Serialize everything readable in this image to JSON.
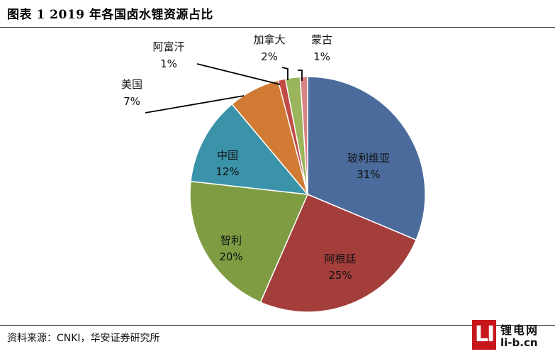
{
  "header": {
    "title": "图表 1  2019 年各国卤水锂资源占比"
  },
  "footer": {
    "source": "资料来源：CNKI，华安证券研究所",
    "logo_mark": "LI",
    "logo_cn": "锂电网",
    "logo_url": "li-b.cn"
  },
  "chart_data": {
    "type": "pie",
    "title": "",
    "start": "12 o'clock, clockwise",
    "slices": [
      {
        "label": "玻利维亚",
        "value": 31,
        "display": "31%",
        "color": "#4a6b9c",
        "label_position": "inside"
      },
      {
        "label": "阿根廷",
        "value": 25,
        "display": "25%",
        "color": "#a43e3b",
        "label_position": "inside"
      },
      {
        "label": "智利",
        "value": 20,
        "display": "20%",
        "color": "#7f9c43",
        "label_position": "inside"
      },
      {
        "label": "中国",
        "value": 12,
        "display": "12%",
        "color": "#3b93aa",
        "label_position": "inside"
      },
      {
        "label": "美国",
        "value": 7,
        "display": "7%",
        "color": "#d07a33",
        "label_position": "leader-line"
      },
      {
        "label": "阿富汗",
        "value": 1,
        "display": "1%",
        "color": "#c24a45",
        "label_position": "leader-line"
      },
      {
        "label": "加拿大",
        "value": 2,
        "display": "2%",
        "color": "#9ab55b",
        "label_position": "leader-line"
      },
      {
        "label": "蒙古",
        "value": 1,
        "display": "1%",
        "color": "#d98484",
        "label_position": "leader-line"
      }
    ]
  }
}
